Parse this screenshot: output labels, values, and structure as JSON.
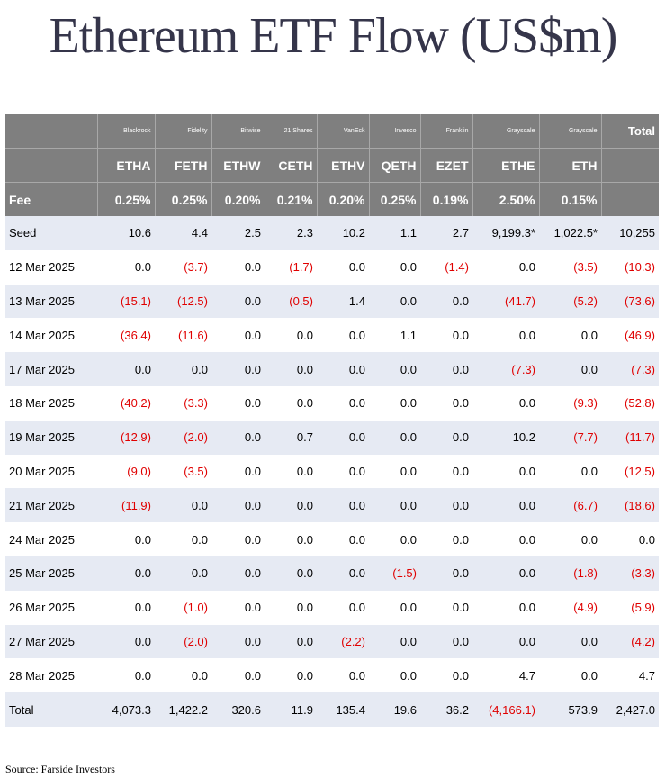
{
  "title": "Ethereum ETF Flow (US$m)",
  "columns": [
    {
      "issuer": "Blackrock",
      "ticker": "ETHA",
      "fee": "0.25%"
    },
    {
      "issuer": "Fidelity",
      "ticker": "FETH",
      "fee": "0.25%"
    },
    {
      "issuer": "Bitwise",
      "ticker": "ETHW",
      "fee": "0.20%"
    },
    {
      "issuer": "21 Shares",
      "ticker": "CETH",
      "fee": "0.21%"
    },
    {
      "issuer": "VanEck",
      "ticker": "ETHV",
      "fee": "0.20%"
    },
    {
      "issuer": "Invesco",
      "ticker": "QETH",
      "fee": "0.25%"
    },
    {
      "issuer": "Franklin",
      "ticker": "EZET",
      "fee": "0.19%"
    },
    {
      "issuer": "Grayscale",
      "ticker": "ETHE",
      "fee": "2.50%"
    },
    {
      "issuer": "Grayscale",
      "ticker": "ETH",
      "fee": "0.15%"
    }
  ],
  "total_header": "Total",
  "fee_label": "Fee",
  "rows": [
    {
      "label": "Seed",
      "values": [
        "10.6",
        "4.4",
        "2.5",
        "2.3",
        "10.2",
        "1.1",
        "2.7",
        "9,199.3*",
        "1,022.5*",
        "10,255"
      ]
    },
    {
      "label": "12 Mar 2025",
      "values": [
        "0.0",
        "(3.7)",
        "0.0",
        "(1.7)",
        "0.0",
        "0.0",
        "(1.4)",
        "0.0",
        "(3.5)",
        "(10.3)"
      ]
    },
    {
      "label": "13 Mar 2025",
      "values": [
        "(15.1)",
        "(12.5)",
        "0.0",
        "(0.5)",
        "1.4",
        "0.0",
        "0.0",
        "(41.7)",
        "(5.2)",
        "(73.6)"
      ]
    },
    {
      "label": "14 Mar 2025",
      "values": [
        "(36.4)",
        "(11.6)",
        "0.0",
        "0.0",
        "0.0",
        "1.1",
        "0.0",
        "0.0",
        "0.0",
        "(46.9)"
      ]
    },
    {
      "label": "17 Mar 2025",
      "values": [
        "0.0",
        "0.0",
        "0.0",
        "0.0",
        "0.0",
        "0.0",
        "0.0",
        "(7.3)",
        "0.0",
        "(7.3)"
      ]
    },
    {
      "label": "18 Mar 2025",
      "values": [
        "(40.2)",
        "(3.3)",
        "0.0",
        "0.0",
        "0.0",
        "0.0",
        "0.0",
        "0.0",
        "(9.3)",
        "(52.8)"
      ]
    },
    {
      "label": "19 Mar 2025",
      "values": [
        "(12.9)",
        "(2.0)",
        "0.0",
        "0.7",
        "0.0",
        "0.0",
        "0.0",
        "10.2",
        "(7.7)",
        "(11.7)"
      ]
    },
    {
      "label": "20 Mar 2025",
      "values": [
        "(9.0)",
        "(3.5)",
        "0.0",
        "0.0",
        "0.0",
        "0.0",
        "0.0",
        "0.0",
        "0.0",
        "(12.5)"
      ]
    },
    {
      "label": "21 Mar 2025",
      "values": [
        "(11.9)",
        "0.0",
        "0.0",
        "0.0",
        "0.0",
        "0.0",
        "0.0",
        "0.0",
        "(6.7)",
        "(18.6)"
      ]
    },
    {
      "label": "24 Mar 2025",
      "values": [
        "0.0",
        "0.0",
        "0.0",
        "0.0",
        "0.0",
        "0.0",
        "0.0",
        "0.0",
        "0.0",
        "0.0"
      ]
    },
    {
      "label": "25 Mar 2025",
      "values": [
        "0.0",
        "0.0",
        "0.0",
        "0.0",
        "0.0",
        "(1.5)",
        "0.0",
        "0.0",
        "(1.8)",
        "(3.3)"
      ]
    },
    {
      "label": "26 Mar 2025",
      "values": [
        "0.0",
        "(1.0)",
        "0.0",
        "0.0",
        "0.0",
        "0.0",
        "0.0",
        "0.0",
        "(4.9)",
        "(5.9)"
      ]
    },
    {
      "label": "27 Mar 2025",
      "values": [
        "0.0",
        "(2.0)",
        "0.0",
        "0.0",
        "(2.2)",
        "0.0",
        "0.0",
        "0.0",
        "0.0",
        "(4.2)"
      ]
    },
    {
      "label": "28 Mar 2025",
      "values": [
        "0.0",
        "0.0",
        "0.0",
        "0.0",
        "0.0",
        "0.0",
        "0.0",
        "4.7",
        "0.0",
        "4.7"
      ]
    },
    {
      "label": "Total",
      "values": [
        "4,073.3",
        "1,422.2",
        "320.6",
        "11.9",
        "135.4",
        "19.6",
        "36.2",
        "(4,166.1)",
        "573.9",
        "2,427.0"
      ]
    }
  ],
  "source": "Source: Farside Investors",
  "colors": {
    "header_bg": "#7f7f7f",
    "alt_row_bg": "#e6eaf3",
    "negative": "#e00000",
    "title": "#35354a"
  }
}
